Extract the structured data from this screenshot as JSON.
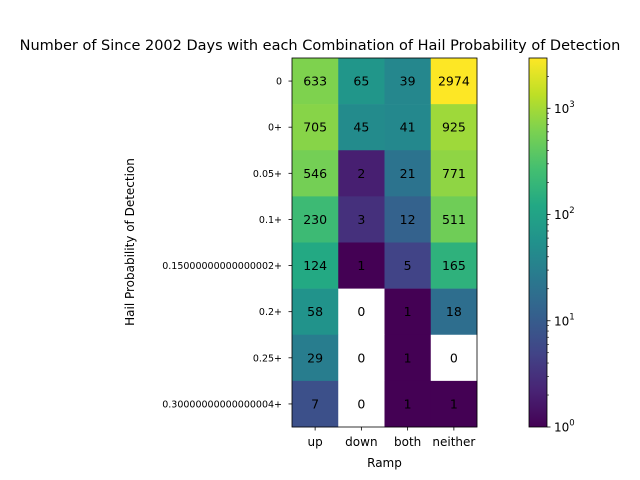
{
  "chart_data": {
    "type": "heatmap",
    "title": "Number of Since 2002 Days with each Combination of Hail Probability of Detection",
    "xlabel": "Ramp",
    "ylabel": "Hail Probability of Detection",
    "x_categories": [
      "up",
      "down",
      "both",
      "neither"
    ],
    "y_categories": [
      "0",
      "0+",
      "0.05+",
      "0.1+",
      "0.15000000000000002+",
      "0.2+",
      "0.25+",
      "0.30000000000000004+"
    ],
    "values": [
      [
        633,
        65,
        39,
        2974
      ],
      [
        705,
        45,
        41,
        925
      ],
      [
        546,
        2,
        21,
        771
      ],
      [
        230,
        3,
        12,
        511
      ],
      [
        124,
        1,
        5,
        165
      ],
      [
        58,
        0,
        1,
        18
      ],
      [
        29,
        0,
        1,
        0
      ],
      [
        7,
        0,
        1,
        1
      ]
    ],
    "colormap": "viridis",
    "color_scale": "log",
    "color_range": [
      1,
      2974
    ],
    "zero_color": "#ffffff",
    "colorbar_ticks": [
      {
        "value": 1,
        "base": "10",
        "exp": "0"
      },
      {
        "value": 10,
        "base": "10",
        "exp": "1"
      },
      {
        "value": 100,
        "base": "10",
        "exp": "2"
      },
      {
        "value": 1000,
        "base": "10",
        "exp": "3"
      }
    ]
  }
}
